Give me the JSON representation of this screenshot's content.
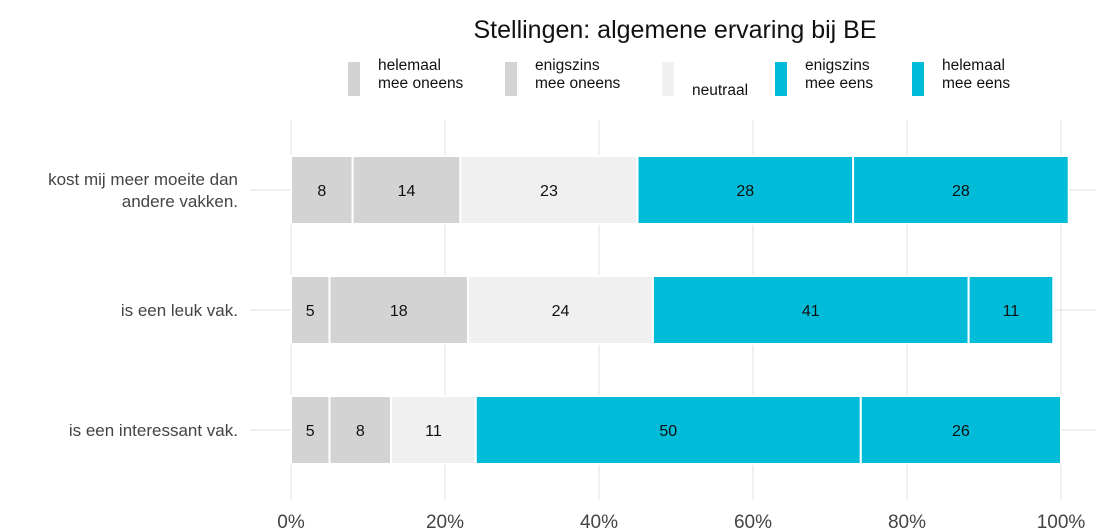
{
  "chart_data": {
    "type": "bar",
    "orientation": "horizontal",
    "stacked": true,
    "title": "Stellingen: algemene ervaring bij BE",
    "categories": [
      "kost mij meer moeite dan\nandere vakken.",
      "is een leuk vak.",
      "is een interessant vak."
    ],
    "series": [
      {
        "name": "helemaal\nmee oneens",
        "color": "#d3d3d3",
        "values": [
          8,
          5,
          5
        ]
      },
      {
        "name": "enigszins\nmee oneens",
        "color": "#d3d3d3",
        "values": [
          14,
          18,
          8
        ]
      },
      {
        "name": "neutraal",
        "color": "#f0f0f0",
        "values": [
          23,
          24,
          11
        ]
      },
      {
        "name": "enigszins\nmee eens",
        "color": "#00bcd8",
        "values": [
          28,
          41,
          50
        ]
      },
      {
        "name": "helemaal\nmee eens",
        "color": "#00bcd8",
        "values": [
          28,
          11,
          26
        ]
      }
    ],
    "xlim": [
      0,
      100
    ],
    "xticks": [
      {
        "value": 0,
        "label": "0%"
      },
      {
        "value": 20,
        "label": "20%"
      },
      {
        "value": 40,
        "label": "40%"
      },
      {
        "value": 60,
        "label": "60%"
      },
      {
        "value": 80,
        "label": "80%"
      },
      {
        "value": 100,
        "label": "100%"
      }
    ],
    "grid": true,
    "legend": "top"
  }
}
